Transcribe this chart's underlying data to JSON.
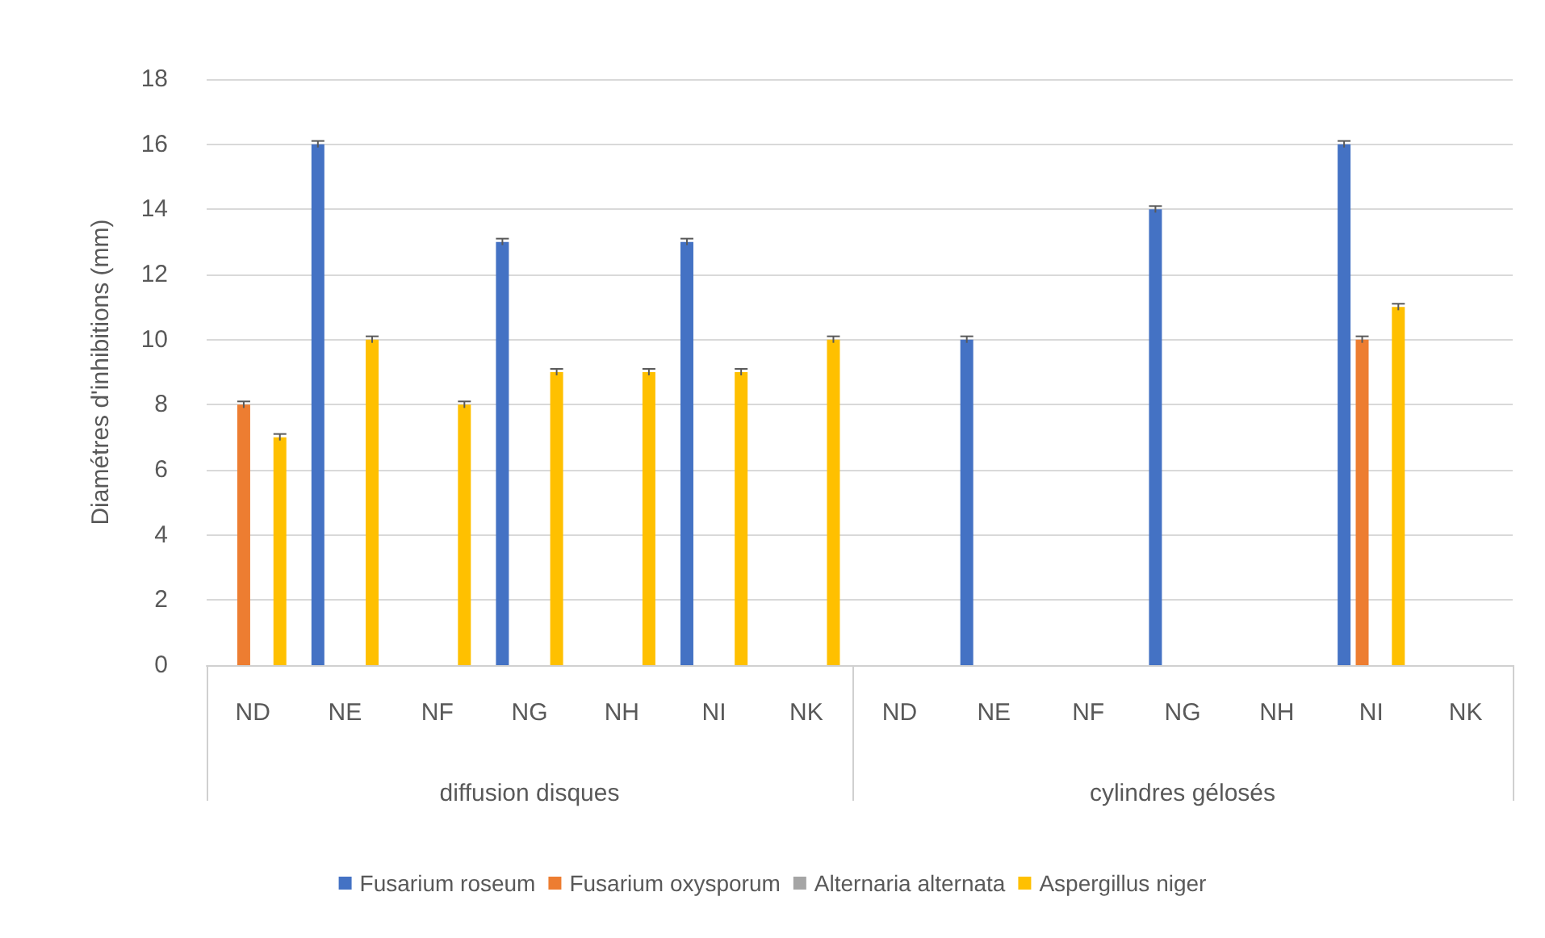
{
  "chart_data": [
    {
      "type": "bar",
      "xlabel": "diffusion disques",
      "ylabel": "Diamétres d'inhibitions (mm)",
      "categories": [
        "ND",
        "NE",
        "NF",
        "NG",
        "NH",
        "NI",
        "NK"
      ],
      "ylim": [
        0,
        18
      ],
      "yticks": [
        0,
        2,
        4,
        6,
        8,
        10,
        12,
        14,
        16,
        18
      ],
      "grid": "y",
      "legend": "bottom",
      "series": [
        {
          "name": "Fusarium roseum",
          "color": "#4472c4",
          "values": [
            0,
            16,
            0,
            13,
            0,
            13,
            0
          ],
          "errors": [
            null,
            0.1,
            null,
            0.1,
            null,
            0.1,
            null
          ]
        },
        {
          "name": "Fusarium oxysporum",
          "color": "#ed7d31",
          "values": [
            8,
            0,
            0,
            0,
            0,
            0,
            0
          ],
          "errors": [
            0.1,
            null,
            null,
            null,
            null,
            null,
            null
          ]
        },
        {
          "name": "Alternaria alternata",
          "color": "#a5a5a5",
          "values": [
            0,
            0,
            0,
            0,
            0,
            0,
            0
          ]
        },
        {
          "name": "Aspergillus niger",
          "color": "#ffc000",
          "values": [
            7,
            10,
            8,
            9,
            9,
            9,
            10
          ],
          "errors": [
            0.1,
            0.1,
            0.1,
            0.1,
            0.1,
            0.1,
            0.1
          ]
        }
      ]
    },
    {
      "type": "bar",
      "xlabel": "cylindres gélosés",
      "categories": [
        "ND",
        "NE",
        "NF",
        "NG",
        "NH",
        "NI",
        "NK"
      ],
      "ylim": [
        0,
        18
      ],
      "yticks": [
        0,
        2,
        4,
        6,
        8,
        10,
        12,
        14,
        16,
        18
      ],
      "grid": "y",
      "tick_labels": "x",
      "series": [
        {
          "color": "#4472c4",
          "values": [
            0,
            10,
            0,
            14,
            0,
            16,
            0
          ],
          "errors": [
            null,
            0.1,
            null,
            0.1,
            null,
            0.1,
            null
          ]
        },
        {
          "color": "#ed7d31",
          "values": [
            0,
            0,
            0,
            0,
            0,
            10,
            0
          ],
          "errors": [
            null,
            null,
            null,
            null,
            null,
            0.1,
            null
          ]
        },
        {
          "color": "#a5a5a5",
          "values": [
            0,
            0,
            0,
            0,
            0,
            0,
            0
          ]
        },
        {
          "color": "#ffc000",
          "values": [
            0,
            0,
            0,
            0,
            0,
            11,
            0
          ],
          "errors": [
            null,
            null,
            null,
            null,
            null,
            0.1,
            null
          ]
        }
      ]
    }
  ]
}
